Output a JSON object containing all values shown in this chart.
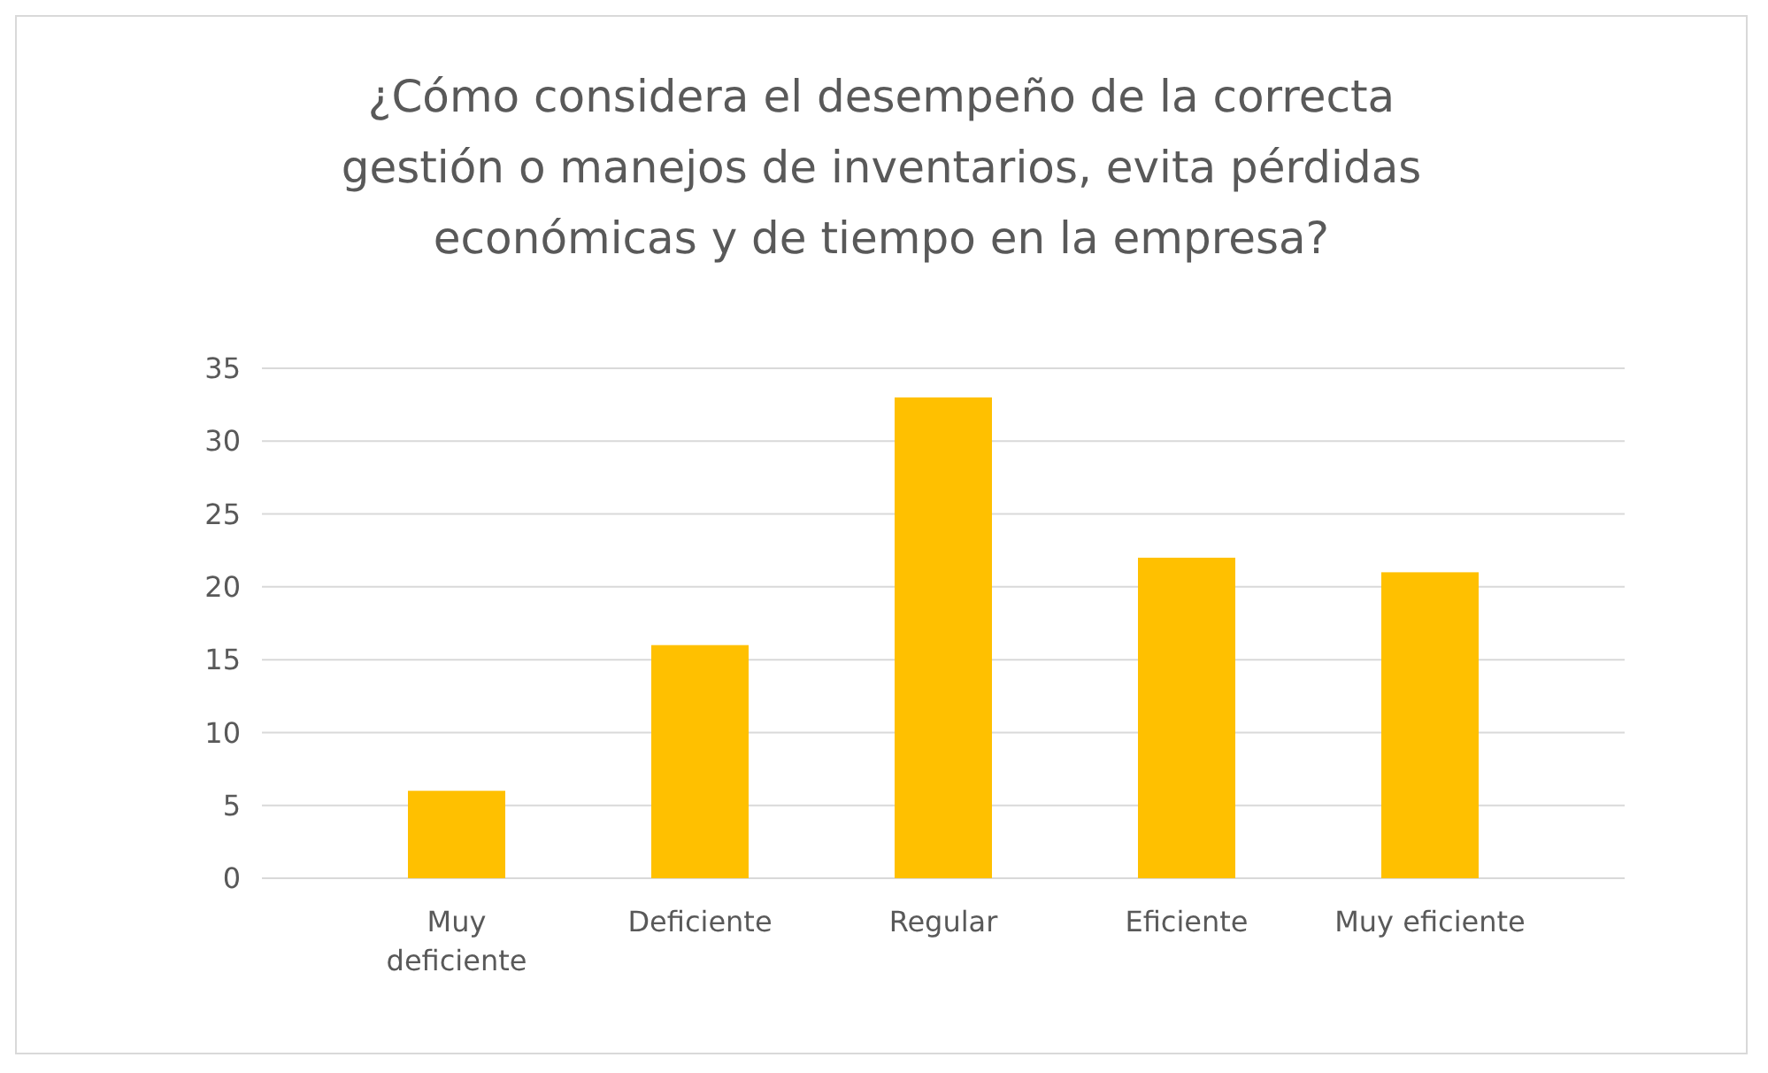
{
  "chart_data": {
    "type": "bar",
    "title": "¿Cómo considera el desempeño de la correcta gestión o manejos de inventarios, evita pérdidas económicas y de tiempo en la empresa?",
    "categories": [
      "Muy deficiente",
      "Deficiente",
      "Regular",
      "Eficiente",
      "Muy eficiente"
    ],
    "values": [
      6,
      16,
      33,
      22,
      21
    ],
    "color": "#ffc000",
    "ylim": [
      0,
      35
    ],
    "yticks": [
      0,
      5,
      10,
      15,
      20,
      25,
      30,
      35
    ],
    "grid": true
  }
}
